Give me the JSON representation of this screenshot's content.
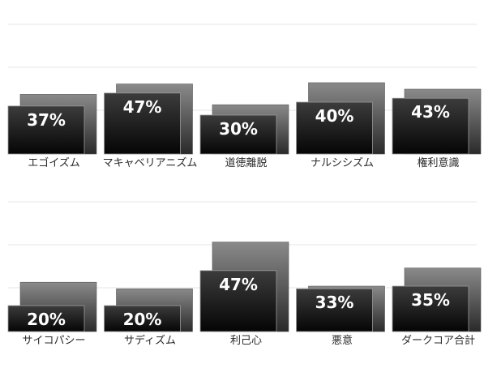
{
  "chart_data": [
    {
      "type": "bar",
      "categories": [
        "エゴイズム",
        "マキャベリアニズム",
        "道徳離脱",
        "ナルシシズム",
        "権利意識"
      ],
      "series": [
        {
          "values": [
            37,
            47,
            30,
            40,
            43
          ]
        },
        {
          "values": [
            46,
            54,
            38,
            55,
            50
          ]
        }
      ],
      "labels": [
        "37%",
        "47%",
        "30%",
        "40%",
        "43%"
      ],
      "ylim": [
        0,
        100
      ],
      "grid": true
    },
    {
      "type": "bar",
      "categories": [
        "サイコパシー",
        "サディズム",
        "利己心",
        "悪意",
        "ダークコア合計"
      ],
      "series": [
        {
          "values": [
            20,
            20,
            47,
            33,
            35
          ]
        },
        {
          "values": [
            38,
            33,
            69,
            35,
            49
          ]
        }
      ],
      "labels": [
        "20%",
        "20%",
        "47%",
        "33%",
        "35%"
      ],
      "ylim": [
        0,
        100
      ],
      "grid": true
    }
  ]
}
